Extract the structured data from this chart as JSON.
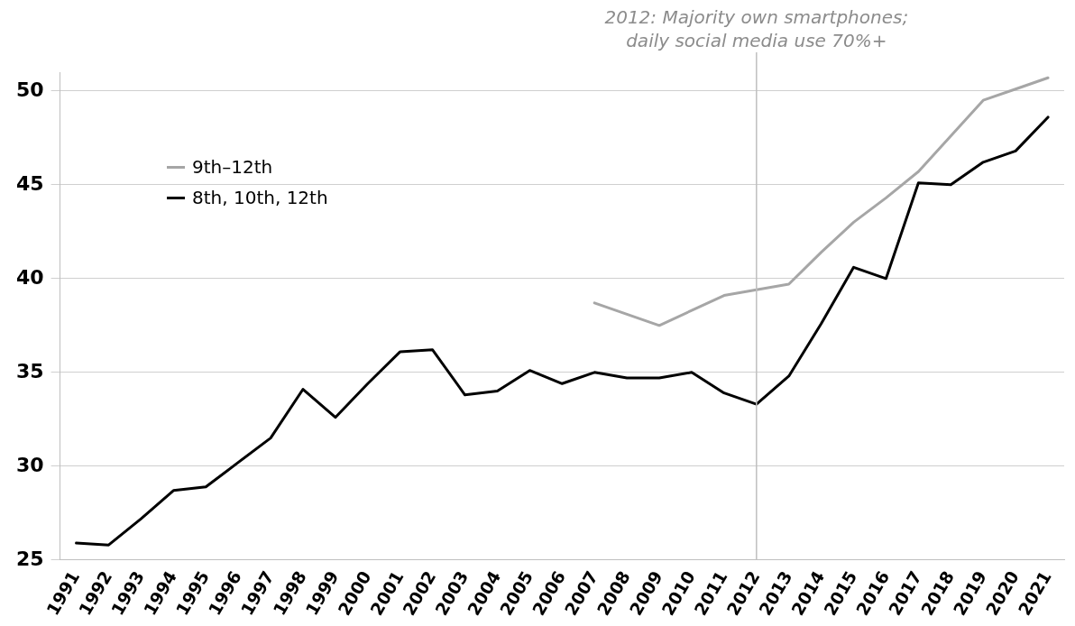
{
  "chart_data": {
    "type": "line",
    "categories": [
      "1991",
      "1992",
      "1993",
      "1994",
      "1995",
      "1996",
      "1997",
      "1998",
      "1999",
      "2000",
      "2001",
      "2002",
      "2003",
      "2004",
      "2005",
      "2006",
      "2007",
      "2008",
      "2009",
      "2010",
      "2011",
      "2012",
      "2013",
      "2014",
      "2015",
      "2016",
      "2017",
      "2018",
      "2019",
      "2020",
      "2021"
    ],
    "series": [
      {
        "name": "9th–12th",
        "color": "#a6a6a6",
        "values": [
          null,
          null,
          null,
          null,
          null,
          null,
          null,
          null,
          null,
          null,
          null,
          null,
          null,
          null,
          null,
          null,
          38.7,
          38.1,
          37.5,
          38.3,
          39.1,
          39.4,
          39.7,
          41.4,
          43.0,
          44.3,
          45.7,
          47.6,
          49.5,
          50.1,
          50.7
        ]
      },
      {
        "name": "8th, 10th, 12th",
        "color": "#000000",
        "values": [
          25.9,
          25.8,
          27.2,
          28.7,
          28.9,
          30.2,
          31.5,
          34.1,
          32.6,
          34.4,
          36.1,
          36.2,
          33.8,
          34.0,
          35.1,
          34.4,
          35.0,
          34.7,
          34.7,
          35.0,
          33.9,
          33.3,
          34.8,
          37.6,
          40.6,
          40.0,
          45.1,
          45.0,
          46.2,
          46.8,
          48.6
        ]
      }
    ],
    "ylim": [
      25,
      51
    ],
    "yticks": [
      25,
      30,
      35,
      40,
      45,
      50
    ],
    "grid": "y",
    "legend": "top left",
    "marker": "none",
    "line_style": "solid",
    "ref_lines": [
      {
        "axis": "x",
        "value": "2012",
        "label": "2012: Majority own smartphones; daily social media use 70%+",
        "color": "#bfbfbf"
      }
    ]
  }
}
